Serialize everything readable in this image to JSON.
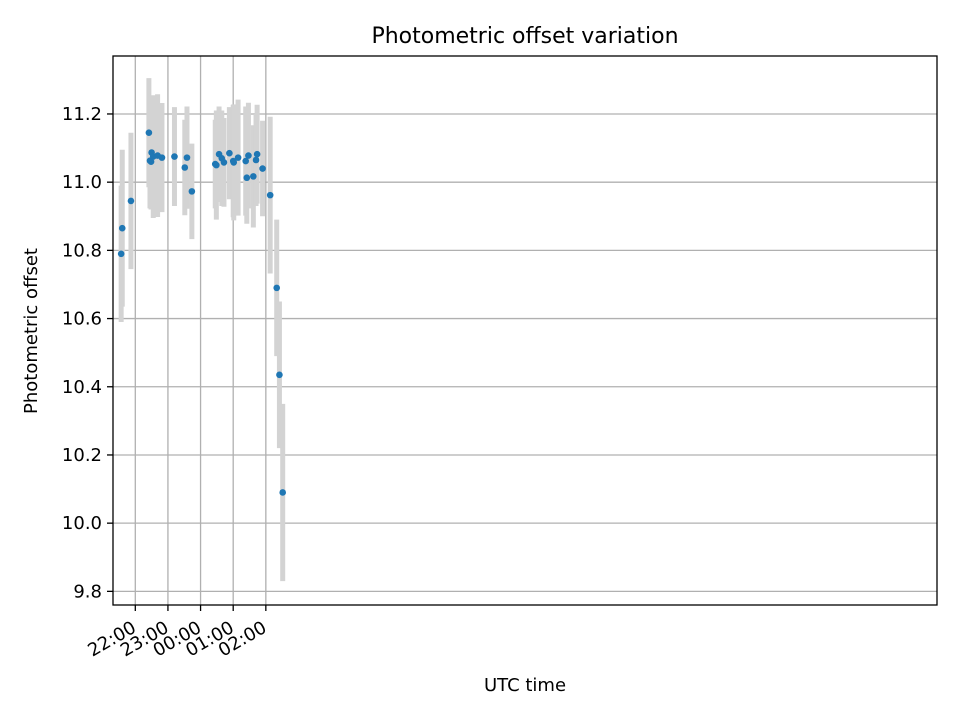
{
  "chart_data": {
    "type": "scatter",
    "title": "Photometric offset variation",
    "xlabel": "UTC time",
    "ylabel": "Photometric offset",
    "grid": true,
    "legend": "none",
    "x_axis_kind": "time",
    "xlim": [
      "21:19",
      "22:34 (+1d)"
    ],
    "ylim": [
      9.76,
      11.37
    ],
    "xticks": [
      {
        "time": "22:00",
        "label": "22:00"
      },
      {
        "time": "23:00",
        "label": "23:00"
      },
      {
        "time": "00:00",
        "label": "00:00"
      },
      {
        "time": "01:00",
        "label": "01:00"
      },
      {
        "time": "02:00",
        "label": "02:00"
      }
    ],
    "yticks": [
      {
        "value": 9.8,
        "label": "9.8"
      },
      {
        "value": 10.0,
        "label": "10.0"
      },
      {
        "value": 10.2,
        "label": "10.2"
      },
      {
        "value": 10.4,
        "label": "10.4"
      },
      {
        "value": 10.6,
        "label": "10.6"
      },
      {
        "value": 10.8,
        "label": "10.8"
      },
      {
        "value": 11.0,
        "label": "11.0"
      },
      {
        "value": 11.2,
        "label": "11.2"
      }
    ],
    "colors": {
      "point": "#1f77b4",
      "errorbar": "#d3d3d3",
      "grid": "#b0b0b0"
    },
    "series": [
      {
        "points": [
          {
            "time": "21:34",
            "y": 10.79,
            "err": 0.2
          },
          {
            "time": "21:36",
            "y": 10.865,
            "err": 0.23
          },
          {
            "time": "21:52",
            "y": 10.945,
            "err": 0.2
          },
          {
            "time": "22:25",
            "y": 11.145,
            "err": 0.16
          },
          {
            "time": "22:27",
            "y": 11.063,
            "err": 0.14
          },
          {
            "time": "22:29",
            "y": 11.06,
            "err": 0.14
          },
          {
            "time": "22:30",
            "y": 11.087,
            "err": 0.14
          },
          {
            "time": "22:33",
            "y": 11.075,
            "err": 0.18
          },
          {
            "time": "22:41",
            "y": 11.078,
            "err": 0.18
          },
          {
            "time": "22:49",
            "y": 11.072,
            "err": 0.16
          },
          {
            "time": "23:12",
            "y": 11.075,
            "err": 0.145
          },
          {
            "time": "23:31",
            "y": 11.043,
            "err": 0.14
          },
          {
            "time": "23:35",
            "y": 11.072,
            "err": 0.15
          },
          {
            "time": "23:44",
            "y": 10.973,
            "err": 0.14
          },
          {
            "time": "00:27",
            "y": 11.053,
            "err": 0.13
          },
          {
            "time": "00:29",
            "y": 11.05,
            "err": 0.16
          },
          {
            "time": "00:34",
            "y": 11.082,
            "err": 0.14
          },
          {
            "time": "00:39",
            "y": 11.07,
            "err": 0.14
          },
          {
            "time": "00:43",
            "y": 11.058,
            "err": 0.13
          },
          {
            "time": "00:53",
            "y": 11.085,
            "err": 0.135
          },
          {
            "time": "01:00",
            "y": 11.062,
            "err": 0.165
          },
          {
            "time": "01:01",
            "y": 11.058,
            "err": 0.17
          },
          {
            "time": "01:09",
            "y": 11.072,
            "err": 0.17
          },
          {
            "time": "01:23",
            "y": 11.062,
            "err": 0.16
          },
          {
            "time": "01:25",
            "y": 11.013,
            "err": 0.135
          },
          {
            "time": "01:28",
            "y": 11.078,
            "err": 0.155
          },
          {
            "time": "01:37",
            "y": 11.017,
            "err": 0.15
          },
          {
            "time": "01:42",
            "y": 11.065,
            "err": 0.135
          },
          {
            "time": "01:44",
            "y": 11.082,
            "err": 0.145
          },
          {
            "time": "01:54",
            "y": 11.04,
            "err": 0.14
          },
          {
            "time": "02:08",
            "y": 10.962,
            "err": 0.23
          },
          {
            "time": "02:20",
            "y": 10.69,
            "err": 0.2
          },
          {
            "time": "02:25",
            "y": 10.435,
            "err": 0.215
          },
          {
            "time": "02:31",
            "y": 10.09,
            "err": 0.26
          }
        ]
      }
    ]
  }
}
